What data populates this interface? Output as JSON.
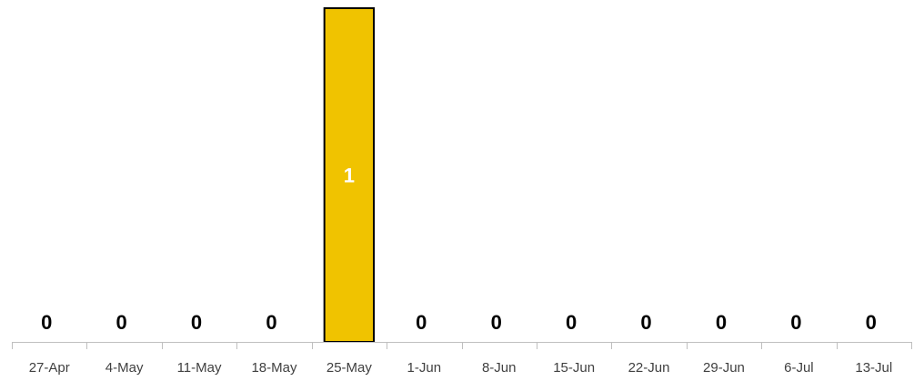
{
  "chart_data": {
    "type": "bar",
    "title": "",
    "xlabel": "",
    "ylabel": "",
    "categories": [
      "27-Apr",
      "4-May",
      "11-May",
      "18-May",
      "25-May",
      "1-Jun",
      "8-Jun",
      "15-Jun",
      "22-Jun",
      "29-Jun",
      "6-Jul",
      "13-Jul"
    ],
    "values": [
      0,
      0,
      0,
      0,
      1,
      0,
      0,
      0,
      0,
      0,
      0,
      0
    ],
    "ylim": [
      0,
      1
    ],
    "grid": false,
    "legend": "none",
    "colors": {
      "bar_fill": "#f0c300",
      "bar_outline": "#000000",
      "label_on_bar": "#ffffff",
      "label_default": "#000000",
      "axis": "#bfbfbf",
      "tick_text": "#404040"
    }
  }
}
